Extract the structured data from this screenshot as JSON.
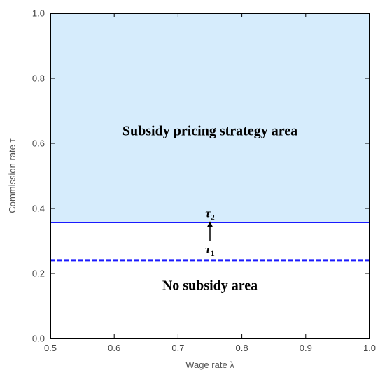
{
  "chart_data": {
    "type": "area",
    "xlabel": "Wage rate λ",
    "ylabel": "Commission rate τ",
    "xlim": [
      0.5,
      1.0
    ],
    "ylim": [
      0.0,
      1.0
    ],
    "x_ticks": [
      "0.5",
      "0.6",
      "0.7",
      "0.8",
      "0.9",
      "1.0"
    ],
    "y_ticks": [
      "0.0",
      "0.2",
      "0.4",
      "0.6",
      "0.8",
      "1.0"
    ],
    "grid": false,
    "series": [
      {
        "label": "τ1",
        "style": "dashed",
        "color": "#1a1aff",
        "x": [
          0.5,
          1.0
        ],
        "y": [
          0.24,
          0.24
        ]
      },
      {
        "label": "τ2",
        "style": "solid",
        "color": "#1a1aff",
        "x": [
          0.5,
          1.0
        ],
        "y": [
          0.357,
          0.357
        ]
      }
    ],
    "shaded_region": {
      "y_from": 0.357,
      "y_to": 1.0,
      "color": "#d6ecfc"
    },
    "annotations": [
      {
        "text": "Subsidy pricing strategy area",
        "x": 0.75,
        "y": 0.64
      },
      {
        "text": "No subsidy area",
        "x": 0.75,
        "y": 0.165
      }
    ],
    "arrow": {
      "x": 0.75,
      "from_y": 0.3,
      "to_y": 0.365
    },
    "tau_labels": {
      "tau1": {
        "base": "τ",
        "sub": "1",
        "x": 0.75,
        "y": 0.275
      },
      "tau2": {
        "base": "τ",
        "sub": "2",
        "x": 0.75,
        "y": 0.375
      }
    },
    "colors": {
      "frame": "#000000",
      "line": "#1a1aff",
      "fill": "#d6ecfc"
    }
  }
}
